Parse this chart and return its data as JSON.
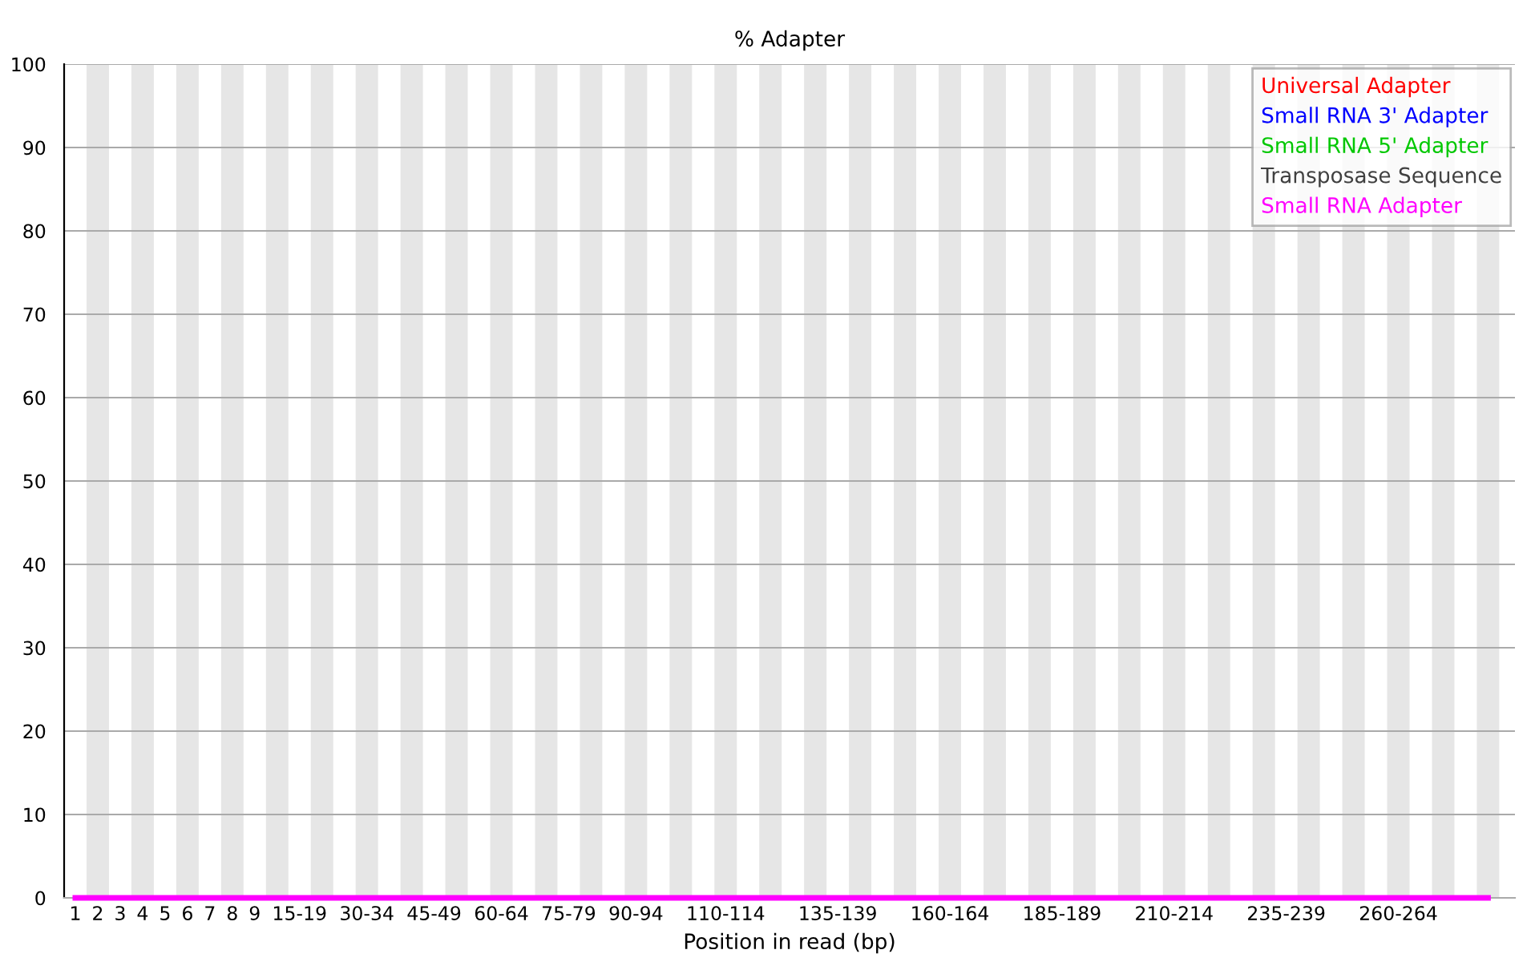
{
  "chart_data": {
    "type": "line",
    "title": "% Adapter",
    "xlabel": "Position in read (bp)",
    "categories": [
      "1",
      "2",
      "3",
      "4",
      "5",
      "6",
      "7",
      "8",
      "9",
      null,
      "15-19",
      null,
      null,
      "30-34",
      null,
      null,
      "45-49",
      null,
      null,
      "60-64",
      null,
      null,
      "75-79",
      null,
      null,
      "90-94",
      null,
      null,
      null,
      "110-114",
      null,
      null,
      null,
      null,
      "135-139",
      null,
      null,
      null,
      null,
      "160-164",
      null,
      null,
      null,
      null,
      "185-189",
      null,
      null,
      null,
      null,
      "210-214",
      null,
      null,
      null,
      null,
      "235-239",
      null,
      null,
      null,
      null,
      "260-264",
      null,
      null,
      null,
      null
    ],
    "series": [
      {
        "name": "Universal Adapter",
        "color": "#ff0000",
        "values": [
          null,
          null,
          null,
          null,
          null,
          null,
          null,
          null,
          null,
          null,
          null,
          null,
          null,
          null,
          null,
          null,
          null,
          null,
          null,
          null,
          null,
          null,
          null,
          null,
          null,
          null,
          null,
          null,
          null,
          null,
          null,
          null,
          null,
          null,
          null,
          null,
          null,
          null,
          null,
          null,
          null,
          null,
          null,
          null,
          null,
          null,
          null,
          null,
          null,
          null,
          null,
          null,
          null,
          null,
          null,
          null,
          null,
          null,
          null,
          null,
          null,
          null,
          null,
          null
        ]
      },
      {
        "name": "Small RNA 3' Adapter",
        "color": "#0000ff",
        "values": [
          null,
          null,
          null,
          null,
          null,
          null,
          null,
          null,
          null,
          null,
          null,
          null,
          null,
          null,
          null,
          null,
          null,
          null,
          null,
          null,
          null,
          null,
          null,
          null,
          null,
          null,
          null,
          null,
          null,
          null,
          null,
          null,
          null,
          null,
          null,
          null,
          null,
          null,
          null,
          null,
          null,
          null,
          null,
          null,
          null,
          null,
          null,
          null,
          null,
          null,
          null,
          null,
          null,
          null,
          null,
          null,
          null,
          null,
          null,
          null,
          null,
          null,
          null,
          null
        ]
      },
      {
        "name": "Small RNA 5' Adapter",
        "color": "#00c800",
        "values": [
          null,
          null,
          null,
          null,
          null,
          null,
          null,
          null,
          null,
          null,
          null,
          null,
          null,
          null,
          null,
          null,
          null,
          null,
          null,
          null,
          null,
          null,
          null,
          null,
          null,
          null,
          null,
          null,
          null,
          null,
          null,
          null,
          null,
          null,
          null,
          null,
          null,
          null,
          null,
          null,
          null,
          null,
          null,
          null,
          null,
          null,
          null,
          null,
          null,
          null,
          null,
          null,
          null,
          null,
          null,
          null,
          null,
          null,
          null,
          null,
          null,
          null,
          null,
          null
        ]
      },
      {
        "name": "Transposase Sequence",
        "color": "#404040",
        "values": [
          null,
          null,
          null,
          null,
          null,
          null,
          null,
          null,
          null,
          null,
          null,
          null,
          null,
          null,
          null,
          null,
          null,
          null,
          null,
          null,
          null,
          null,
          null,
          null,
          null,
          null,
          null,
          null,
          null,
          null,
          null,
          null,
          null,
          null,
          null,
          null,
          null,
          null,
          null,
          null,
          null,
          null,
          null,
          null,
          null,
          null,
          null,
          null,
          null,
          null,
          null,
          null,
          null,
          null,
          null,
          null,
          null,
          null,
          null,
          null,
          null,
          null,
          null,
          null
        ]
      },
      {
        "name": "Small RNA Adapter",
        "color": "#ff00ff",
        "values": [
          0,
          0,
          0,
          0,
          0,
          0,
          0,
          0,
          0,
          0,
          0,
          0,
          0,
          0,
          0,
          0,
          0,
          0,
          0,
          0,
          0,
          0,
          0,
          0,
          0,
          0,
          0,
          0,
          0,
          0,
          0,
          0,
          0,
          0,
          0,
          0,
          0,
          0,
          0,
          0,
          0,
          0,
          0,
          0,
          0,
          0,
          0,
          0,
          0,
          0,
          0,
          0,
          0,
          0,
          0,
          0,
          0,
          0,
          0,
          0,
          0,
          0,
          0,
          0
        ]
      }
    ],
    "ylim": [
      0,
      100
    ],
    "yticks": [
      0,
      10,
      20,
      30,
      40,
      50,
      60,
      70,
      80,
      90,
      100
    ],
    "grid": "y",
    "legend": "top right",
    "marker": "none",
    "line_style": "solid"
  }
}
